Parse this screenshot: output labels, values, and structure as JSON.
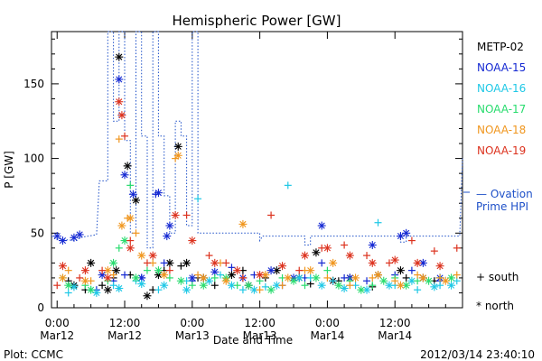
{
  "chart_data": {
    "type": "scatter",
    "title": "Hemispheric Power [GW]",
    "xlabel": "Date and Time",
    "ylabel": "P [GW]",
    "ylim": [
      0,
      185
    ],
    "xlim_hours": [
      -1,
      72
    ],
    "yticks": [
      0,
      50,
      100,
      150
    ],
    "xticks": [
      {
        "hour": 0,
        "time": "0:00",
        "date": "Mar12"
      },
      {
        "hour": 12,
        "time": "12:00",
        "date": "Mar12"
      },
      {
        "hour": 24,
        "time": "0:00",
        "date": "Mar13"
      },
      {
        "hour": 36,
        "time": "12:00",
        "date": "Mar13"
      },
      {
        "hour": 48,
        "time": "0:00",
        "date": "Mar14"
      },
      {
        "hour": 60,
        "time": "12:00",
        "date": "Mar14"
      }
    ],
    "grid": false,
    "legend_position": "right",
    "series": [
      {
        "name": "METP-02",
        "color": "#000000",
        "south": [
          [
            2,
            18
          ],
          [
            5,
            12
          ],
          [
            8,
            15
          ],
          [
            10,
            20
          ],
          [
            13,
            22
          ],
          [
            17,
            12
          ],
          [
            19,
            25
          ],
          [
            22,
            28
          ],
          [
            25,
            20
          ],
          [
            28,
            15
          ],
          [
            33,
            25
          ],
          [
            37,
            20
          ],
          [
            45,
            16
          ],
          [
            50,
            18
          ],
          [
            56,
            14
          ],
          [
            62,
            20
          ],
          [
            67,
            18
          ]
        ],
        "north": [
          [
            3,
            15
          ],
          [
            6,
            30
          ],
          [
            9,
            12
          ],
          [
            10.5,
            25
          ],
          [
            11,
            168
          ],
          [
            12.5,
            95
          ],
          [
            14,
            72
          ],
          [
            16,
            8
          ],
          [
            18,
            22
          ],
          [
            20,
            30
          ],
          [
            21.5,
            108
          ],
          [
            23,
            30
          ],
          [
            26,
            20
          ],
          [
            31,
            22
          ],
          [
            34,
            15
          ],
          [
            39,
            25
          ],
          [
            43,
            20
          ],
          [
            46,
            37
          ],
          [
            49,
            18
          ],
          [
            52,
            20
          ],
          [
            57,
            22
          ],
          [
            61,
            25
          ],
          [
            65,
            20
          ]
        ]
      },
      {
        "name": "NOAA-15",
        "color": "#1428d2",
        "south": [
          [
            7,
            12
          ],
          [
            10,
            18
          ],
          [
            12,
            22
          ],
          [
            15,
            20
          ],
          [
            17.5,
            76
          ],
          [
            19,
            30
          ],
          [
            24,
            18
          ],
          [
            31,
            27
          ],
          [
            35,
            22
          ],
          [
            40,
            15
          ],
          [
            44,
            20
          ],
          [
            47,
            30
          ],
          [
            51,
            20
          ],
          [
            55,
            18
          ],
          [
            60,
            22
          ],
          [
            63,
            25
          ],
          [
            68,
            18
          ]
        ],
        "north": [
          [
            0,
            48
          ],
          [
            1,
            45
          ],
          [
            3,
            47
          ],
          [
            4,
            49
          ],
          [
            8,
            22
          ],
          [
            11,
            153
          ],
          [
            12,
            89
          ],
          [
            13.5,
            76
          ],
          [
            15,
            20
          ],
          [
            18,
            77
          ],
          [
            19.5,
            48
          ],
          [
            20,
            55
          ],
          [
            24,
            20
          ],
          [
            28,
            24
          ],
          [
            33,
            20
          ],
          [
            38,
            25
          ],
          [
            42,
            20
          ],
          [
            47,
            55
          ],
          [
            52,
            20
          ],
          [
            56,
            42
          ],
          [
            61,
            48
          ],
          [
            62,
            50
          ],
          [
            65,
            30
          ],
          [
            68,
            20
          ]
        ]
      },
      {
        "name": "NOAA-16",
        "color": "#1ec8e6",
        "south": [
          [
            2,
            10
          ],
          [
            6,
            12
          ],
          [
            10,
            15
          ],
          [
            14,
            18
          ],
          [
            18,
            12
          ],
          [
            23,
            18
          ],
          [
            25,
            73
          ],
          [
            29,
            22
          ],
          [
            33,
            12
          ],
          [
            37,
            14
          ],
          [
            41,
            82
          ],
          [
            45,
            20
          ],
          [
            49,
            18
          ],
          [
            53,
            15
          ],
          [
            57,
            57
          ],
          [
            60,
            15
          ],
          [
            64,
            12
          ],
          [
            68,
            15
          ],
          [
            71,
            18
          ]
        ],
        "north": [
          [
            3,
            14
          ],
          [
            7,
            10
          ],
          [
            11,
            13
          ],
          [
            15,
            16
          ],
          [
            19,
            15
          ],
          [
            23,
            12
          ],
          [
            27,
            18
          ],
          [
            31,
            15
          ],
          [
            35,
            12
          ],
          [
            39,
            15
          ],
          [
            43,
            20
          ],
          [
            47,
            15
          ],
          [
            51,
            13
          ],
          [
            55,
            12
          ],
          [
            59,
            15
          ],
          [
            63,
            18
          ],
          [
            67,
            14
          ],
          [
            70,
            15
          ]
        ]
      },
      {
        "name": "NOAA-17",
        "color": "#28dc6e",
        "south": [
          [
            1,
            20
          ],
          [
            5,
            15
          ],
          [
            9,
            18
          ],
          [
            11,
            40
          ],
          [
            13,
            82
          ],
          [
            16,
            25
          ],
          [
            20,
            20
          ],
          [
            24,
            15
          ],
          [
            28,
            20
          ],
          [
            32,
            15
          ],
          [
            36,
            18
          ],
          [
            40,
            20
          ],
          [
            44,
            15
          ],
          [
            48,
            25
          ],
          [
            52,
            18
          ],
          [
            56,
            15
          ],
          [
            60,
            20
          ],
          [
            64,
            18
          ],
          [
            68,
            20
          ]
        ],
        "north": [
          [
            2,
            15
          ],
          [
            6,
            12
          ],
          [
            10,
            30
          ],
          [
            12,
            45
          ],
          [
            14,
            20
          ],
          [
            18,
            25
          ],
          [
            22,
            18
          ],
          [
            26,
            15
          ],
          [
            30,
            20
          ],
          [
            34,
            15
          ],
          [
            38,
            12
          ],
          [
            42,
            18
          ],
          [
            46,
            20
          ],
          [
            50,
            15
          ],
          [
            54,
            12
          ],
          [
            58,
            18
          ],
          [
            62,
            15
          ],
          [
            66,
            18
          ],
          [
            70,
            20
          ]
        ]
      },
      {
        "name": "NOAA-18",
        "color": "#f0961e",
        "south": [
          [
            2,
            25
          ],
          [
            6,
            18
          ],
          [
            10,
            22
          ],
          [
            11,
            113
          ],
          [
            12.5,
            60
          ],
          [
            14,
            50
          ],
          [
            17,
            30
          ],
          [
            21,
            100
          ],
          [
            25,
            22
          ],
          [
            29,
            30
          ],
          [
            33,
            20
          ],
          [
            36,
            12
          ],
          [
            40,
            15
          ],
          [
            44,
            25
          ],
          [
            48,
            20
          ],
          [
            52,
            15
          ],
          [
            56,
            20
          ],
          [
            60,
            18
          ],
          [
            64,
            22
          ],
          [
            68,
            20
          ],
          [
            71,
            22
          ]
        ],
        "north": [
          [
            1,
            20
          ],
          [
            5,
            18
          ],
          [
            9,
            25
          ],
          [
            11.5,
            55
          ],
          [
            13,
            60
          ],
          [
            15,
            35
          ],
          [
            19,
            22
          ],
          [
            21.5,
            102
          ],
          [
            26,
            20
          ],
          [
            30,
            18
          ],
          [
            33,
            56
          ],
          [
            37,
            22
          ],
          [
            41,
            20
          ],
          [
            45,
            25
          ],
          [
            49,
            30
          ],
          [
            53,
            20
          ],
          [
            57,
            22
          ],
          [
            61,
            15
          ],
          [
            65,
            20
          ],
          [
            69,
            18
          ]
        ]
      },
      {
        "name": "NOAA-19",
        "color": "#dc321e",
        "south": [
          [
            0,
            15
          ],
          [
            4,
            20
          ],
          [
            8,
            25
          ],
          [
            12,
            115
          ],
          [
            13,
            45
          ],
          [
            16,
            30
          ],
          [
            20,
            25
          ],
          [
            23,
            62
          ],
          [
            27,
            35
          ],
          [
            30,
            30
          ],
          [
            33,
            20
          ],
          [
            38,
            62
          ],
          [
            43,
            25
          ],
          [
            47,
            40
          ],
          [
            51,
            42
          ],
          [
            55,
            35
          ],
          [
            59,
            30
          ],
          [
            63,
            45
          ],
          [
            67,
            38
          ],
          [
            71,
            40
          ]
        ],
        "north": [
          [
            1,
            28
          ],
          [
            5,
            25
          ],
          [
            9,
            20
          ],
          [
            11,
            138
          ],
          [
            11.5,
            129
          ],
          [
            13,
            40
          ],
          [
            17,
            35
          ],
          [
            21,
            62
          ],
          [
            24,
            45
          ],
          [
            28,
            30
          ],
          [
            32,
            25
          ],
          [
            36,
            22
          ],
          [
            40,
            28
          ],
          [
            44,
            35
          ],
          [
            48,
            40
          ],
          [
            52,
            35
          ],
          [
            56,
            30
          ],
          [
            60,
            32
          ],
          [
            64,
            30
          ],
          [
            68,
            28
          ]
        ]
      }
    ],
    "ovation": {
      "name": "Ovation Prime HPI",
      "color": "#1e50c8",
      "steps": [
        [
          -1,
          48
        ],
        [
          0,
          46
        ],
        [
          3.5,
          45
        ],
        [
          4,
          47
        ],
        [
          7,
          49
        ],
        [
          7.5,
          85
        ],
        [
          9,
          85
        ],
        [
          9,
          185
        ],
        [
          10,
          185
        ],
        [
          10,
          125
        ],
        [
          11,
          125
        ],
        [
          11,
          185
        ],
        [
          12,
          185
        ],
        [
          12,
          112
        ],
        [
          13,
          112
        ],
        [
          13,
          50
        ],
        [
          14,
          50
        ],
        [
          14,
          185
        ],
        [
          15,
          185
        ],
        [
          15,
          115
        ],
        [
          16,
          115
        ],
        [
          16,
          40
        ],
        [
          17,
          40
        ],
        [
          17,
          185
        ],
        [
          18,
          185
        ],
        [
          18,
          115
        ],
        [
          19,
          115
        ],
        [
          19,
          75
        ],
        [
          20,
          75
        ],
        [
          20,
          50
        ],
        [
          21,
          50
        ],
        [
          21,
          125
        ],
        [
          22,
          125
        ],
        [
          22,
          115
        ],
        [
          23,
          115
        ],
        [
          23,
          55
        ],
        [
          24,
          55
        ],
        [
          24,
          185
        ],
        [
          25,
          185
        ],
        [
          25,
          50
        ],
        [
          36,
          50
        ],
        [
          36,
          45
        ],
        [
          36.5,
          48
        ],
        [
          44,
          48
        ],
        [
          44,
          42
        ],
        [
          45,
          42
        ],
        [
          45,
          48
        ],
        [
          61,
          48
        ],
        [
          61,
          44
        ],
        [
          62,
          44
        ],
        [
          62,
          48
        ],
        [
          71.5,
          48
        ],
        [
          72,
          100
        ]
      ]
    },
    "legend_text": {
      "ovation": "— Ovation\nPrime HPI",
      "south": "+ south",
      "north": "* north"
    }
  },
  "footer": {
    "left": "Plot: CCMC",
    "right": "2012/03/14 23:40:10"
  }
}
